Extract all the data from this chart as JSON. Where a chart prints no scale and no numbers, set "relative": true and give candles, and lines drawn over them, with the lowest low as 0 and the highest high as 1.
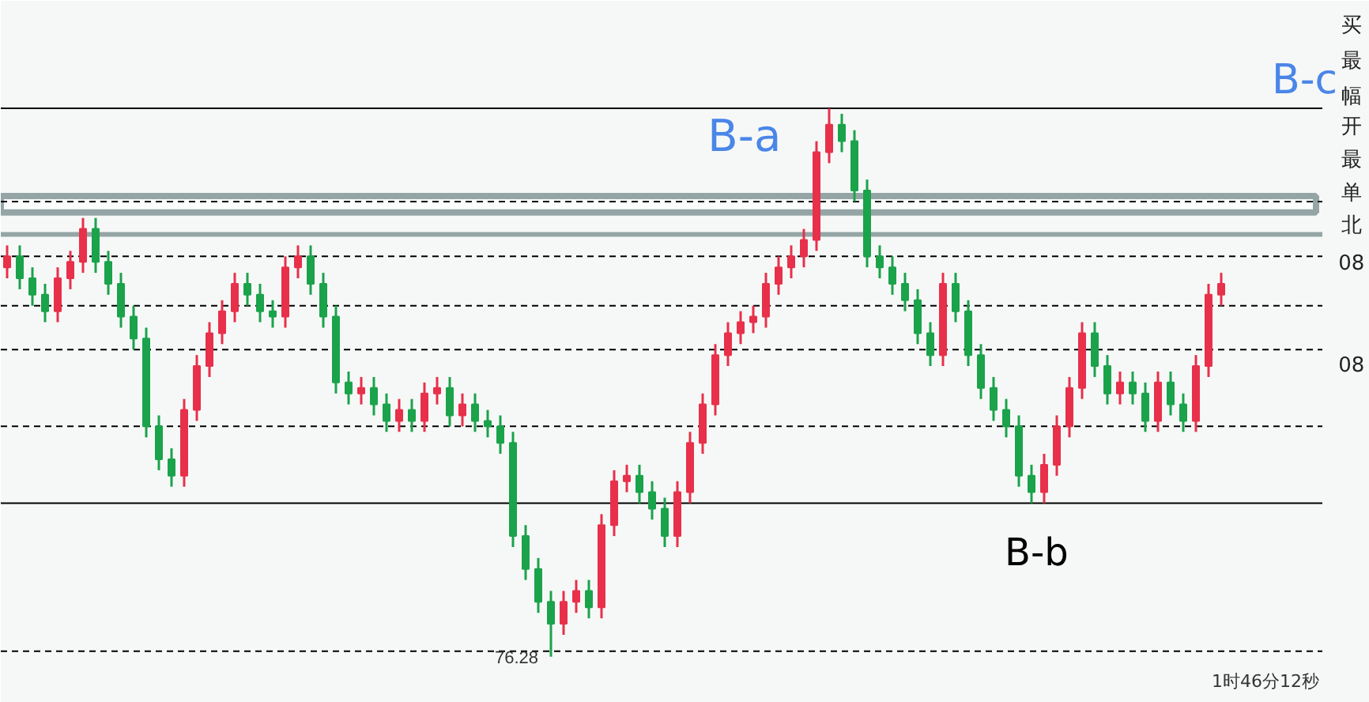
{
  "chart_data": {
    "type": "candlestick",
    "relative": true,
    "categories": [
      null,
      null,
      null,
      null,
      null,
      null,
      null,
      null,
      null,
      null,
      null,
      null,
      null,
      null,
      null,
      null,
      null,
      null,
      null,
      null,
      null,
      null,
      null,
      null,
      null,
      null,
      null,
      null,
      null,
      null,
      null,
      null,
      null,
      null,
      null,
      null,
      null,
      null,
      null,
      null,
      null,
      null,
      null,
      null,
      null,
      null,
      null,
      null,
      null,
      null,
      null,
      null,
      null,
      null,
      null,
      null,
      null,
      null,
      null,
      null,
      null,
      null,
      null,
      null,
      null,
      null,
      null,
      null,
      null,
      null,
      null,
      null,
      null,
      null,
      null,
      null,
      null,
      null,
      null,
      null,
      null,
      null,
      null,
      null,
      null,
      null,
      null,
      null,
      null,
      null,
      null,
      null,
      null,
      null,
      null,
      null,
      null
    ],
    "ohlc": [
      [
        0.71,
        0.75,
        0.69,
        0.73
      ],
      [
        0.73,
        0.75,
        0.67,
        0.69
      ],
      [
        0.69,
        0.71,
        0.64,
        0.66
      ],
      [
        0.66,
        0.68,
        0.61,
        0.63
      ],
      [
        0.63,
        0.71,
        0.61,
        0.69
      ],
      [
        0.69,
        0.74,
        0.67,
        0.72
      ],
      [
        0.72,
        0.8,
        0.7,
        0.78
      ],
      [
        0.78,
        0.8,
        0.7,
        0.72
      ],
      [
        0.72,
        0.74,
        0.66,
        0.68
      ],
      [
        0.68,
        0.7,
        0.6,
        0.62
      ],
      [
        0.62,
        0.64,
        0.56,
        0.58
      ],
      [
        0.58,
        0.6,
        0.4,
        0.42
      ],
      [
        0.42,
        0.44,
        0.34,
        0.36
      ],
      [
        0.36,
        0.38,
        0.31,
        0.33
      ],
      [
        0.33,
        0.47,
        0.31,
        0.45
      ],
      [
        0.45,
        0.55,
        0.43,
        0.53
      ],
      [
        0.53,
        0.61,
        0.51,
        0.59
      ],
      [
        0.59,
        0.65,
        0.57,
        0.63
      ],
      [
        0.63,
        0.7,
        0.61,
        0.68
      ],
      [
        0.68,
        0.7,
        0.64,
        0.66
      ],
      [
        0.66,
        0.68,
        0.61,
        0.63
      ],
      [
        0.63,
        0.65,
        0.6,
        0.62
      ],
      [
        0.62,
        0.73,
        0.6,
        0.71
      ],
      [
        0.71,
        0.75,
        0.69,
        0.73
      ],
      [
        0.73,
        0.75,
        0.66,
        0.68
      ],
      [
        0.68,
        0.7,
        0.6,
        0.62
      ],
      [
        0.62,
        0.64,
        0.48,
        0.5
      ],
      [
        0.5,
        0.52,
        0.46,
        0.48
      ],
      [
        0.48,
        0.51,
        0.46,
        0.49
      ],
      [
        0.49,
        0.51,
        0.44,
        0.46
      ],
      [
        0.46,
        0.48,
        0.41,
        0.43
      ],
      [
        0.43,
        0.47,
        0.41,
        0.45
      ],
      [
        0.45,
        0.47,
        0.41,
        0.43
      ],
      [
        0.43,
        0.5,
        0.41,
        0.48
      ],
      [
        0.48,
        0.51,
        0.46,
        0.49
      ],
      [
        0.49,
        0.51,
        0.42,
        0.44
      ],
      [
        0.44,
        0.48,
        0.42,
        0.46
      ],
      [
        0.46,
        0.48,
        0.41,
        0.43
      ],
      [
        0.43,
        0.45,
        0.4,
        0.42
      ],
      [
        0.42,
        0.44,
        0.37,
        0.39
      ],
      [
        0.39,
        0.41,
        0.2,
        0.22
      ],
      [
        0.22,
        0.24,
        0.14,
        0.16
      ],
      [
        0.16,
        0.18,
        0.08,
        0.1
      ],
      [
        0.1,
        0.12,
        0.0,
        0.06
      ],
      [
        0.06,
        0.12,
        0.04,
        0.1
      ],
      [
        0.1,
        0.14,
        0.08,
        0.12
      ],
      [
        0.12,
        0.14,
        0.07,
        0.09
      ],
      [
        0.09,
        0.26,
        0.07,
        0.24
      ],
      [
        0.24,
        0.34,
        0.22,
        0.32
      ],
      [
        0.32,
        0.35,
        0.3,
        0.33
      ],
      [
        0.33,
        0.35,
        0.28,
        0.3
      ],
      [
        0.3,
        0.32,
        0.25,
        0.27
      ],
      [
        0.27,
        0.29,
        0.2,
        0.22
      ],
      [
        0.22,
        0.32,
        0.2,
        0.3
      ],
      [
        0.3,
        0.41,
        0.28,
        0.39
      ],
      [
        0.39,
        0.48,
        0.37,
        0.46
      ],
      [
        0.46,
        0.57,
        0.44,
        0.55
      ],
      [
        0.55,
        0.61,
        0.53,
        0.59
      ],
      [
        0.59,
        0.63,
        0.57,
        0.61
      ],
      [
        0.61,
        0.64,
        0.59,
        0.62
      ],
      [
        0.62,
        0.7,
        0.6,
        0.68
      ],
      [
        0.68,
        0.73,
        0.66,
        0.71
      ],
      [
        0.71,
        0.75,
        0.69,
        0.73
      ],
      [
        0.73,
        0.78,
        0.71,
        0.76
      ],
      [
        0.76,
        0.94,
        0.74,
        0.92
      ],
      [
        0.92,
        1.0,
        0.9,
        0.97
      ],
      [
        0.97,
        0.99,
        0.92,
        0.94
      ],
      [
        0.94,
        0.96,
        0.83,
        0.85
      ],
      [
        0.85,
        0.87,
        0.71,
        0.73
      ],
      [
        0.73,
        0.75,
        0.69,
        0.71
      ],
      [
        0.71,
        0.73,
        0.66,
        0.68
      ],
      [
        0.68,
        0.7,
        0.63,
        0.65
      ],
      [
        0.65,
        0.67,
        0.57,
        0.59
      ],
      [
        0.59,
        0.61,
        0.53,
        0.55
      ],
      [
        0.55,
        0.7,
        0.53,
        0.68
      ],
      [
        0.68,
        0.7,
        0.61,
        0.63
      ],
      [
        0.63,
        0.65,
        0.53,
        0.55
      ],
      [
        0.55,
        0.57,
        0.47,
        0.49
      ],
      [
        0.49,
        0.51,
        0.43,
        0.45
      ],
      [
        0.45,
        0.47,
        0.4,
        0.42
      ],
      [
        0.42,
        0.44,
        0.31,
        0.33
      ],
      [
        0.33,
        0.35,
        0.28,
        0.3
      ],
      [
        0.3,
        0.37,
        0.28,
        0.35
      ],
      [
        0.35,
        0.44,
        0.33,
        0.42
      ],
      [
        0.42,
        0.51,
        0.4,
        0.49
      ],
      [
        0.49,
        0.61,
        0.47,
        0.59
      ],
      [
        0.59,
        0.61,
        0.51,
        0.53
      ],
      [
        0.53,
        0.55,
        0.46,
        0.48
      ],
      [
        0.48,
        0.52,
        0.46,
        0.5
      ],
      [
        0.5,
        0.52,
        0.46,
        0.48
      ],
      [
        0.48,
        0.5,
        0.41,
        0.43
      ],
      [
        0.43,
        0.52,
        0.41,
        0.5
      ],
      [
        0.5,
        0.52,
        0.44,
        0.46
      ],
      [
        0.46,
        0.48,
        0.41,
        0.43
      ],
      [
        0.43,
        0.55,
        0.41,
        0.53
      ],
      [
        0.53,
        0.68,
        0.51,
        0.66
      ],
      [
        0.66,
        0.7,
        0.64,
        0.68
      ]
    ],
    "ref_lines": [
      {
        "axis": "y",
        "value": 1.0,
        "color": "#000000",
        "line_style": "solid"
      },
      {
        "axis": "y",
        "value": 0.28,
        "color": "#000000",
        "line_style": "solid"
      },
      {
        "axis": "y",
        "value": 0.83,
        "color": "#000000",
        "line_style": "dashed"
      },
      {
        "axis": "y",
        "value": 0.73,
        "color": "#000000",
        "line_style": "dashed"
      },
      {
        "axis": "y",
        "value": 0.64,
        "color": "#000000",
        "line_style": "dashed"
      },
      {
        "axis": "y",
        "value": 0.56,
        "color": "#000000",
        "line_style": "dashed"
      },
      {
        "axis": "y",
        "value": 0.42,
        "color": "#000000",
        "line_style": "dashed"
      },
      {
        "axis": "y",
        "value": 0.01,
        "color": "#000000",
        "line_style": "dashed"
      },
      {
        "axis": "y",
        "value": 0.77,
        "color": "#95a5a6",
        "line_style": "solid"
      }
    ],
    "bands": [
      {
        "axis": "y",
        "from": 0.81,
        "to": 0.84,
        "color": "#95a5a6"
      }
    ],
    "annotations": [
      "B-a",
      "B-b",
      "B-c",
      {
        "text": "76.28",
        "y": 0
      },
      "1时46分12秒",
      "买",
      "最",
      "幅",
      "开",
      "最",
      "单",
      "北",
      "08",
      "08"
    ],
    "grid": false
  }
}
